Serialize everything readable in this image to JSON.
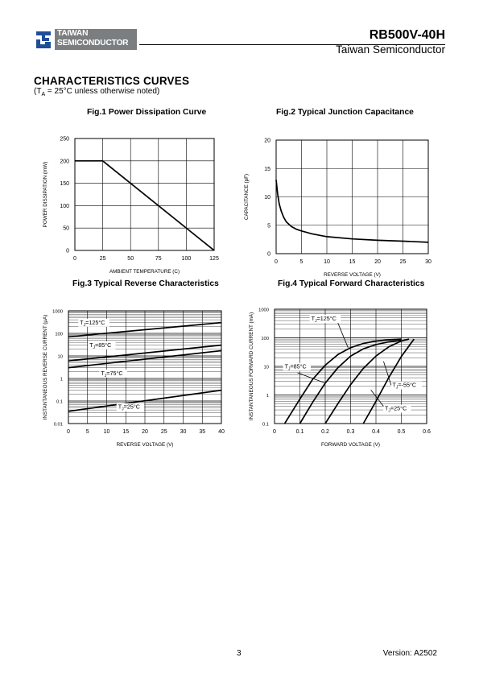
{
  "header": {
    "logo_line1": "TAIWAN",
    "logo_line2": "SEMICONDUCTOR",
    "part_number": "RB500V-40H",
    "company": "Taiwan Semiconductor"
  },
  "section": {
    "title": "CHARACTERISTICS CURVES",
    "note_prefix": "(T",
    "note_sub": "A",
    "note_suffix": " = 25°C unless otherwise noted)"
  },
  "footer": {
    "page": "3",
    "version": "Version: A2502"
  },
  "colors": {
    "logo_gray": "#7b7e80",
    "logo_blue": "#1f4e99",
    "curve": "#000000"
  },
  "chart_data": [
    {
      "type": "line",
      "title": "Fig.1 Power Dissipation Curve",
      "xlabel": "AMBIENT TEMPERATURE (C)",
      "ylabel": "POWER DISSIPATION (mW)",
      "xlim": [
        0,
        125
      ],
      "ylim": [
        0,
        250
      ],
      "xticks": [
        "0",
        "25",
        "50",
        "75",
        "100",
        "125"
      ],
      "yticks": [
        "0",
        "50",
        "100",
        "150",
        "200",
        "250"
      ],
      "grid": true,
      "series": [
        {
          "x": [
            0,
            25,
            125
          ],
          "y": [
            200,
            200,
            0
          ]
        }
      ]
    },
    {
      "type": "line",
      "title": "Fig.2 Typical Junction Capacitance",
      "xlabel": "REVERSE VOLTAGE (V)",
      "ylabel": "CAPACITANCE (pF)",
      "xlim": [
        0,
        30
      ],
      "ylim": [
        0,
        20
      ],
      "xticks": [
        "0",
        "5",
        "10",
        "15",
        "20",
        "25",
        "30"
      ],
      "yticks": [
        "0",
        "5",
        "10",
        "15",
        "20"
      ],
      "grid": true,
      "series": [
        {
          "x": [
            0,
            0.3,
            0.6,
            1,
            1.5,
            2,
            3,
            4,
            5,
            7,
            10,
            15,
            20,
            25,
            30
          ],
          "y": [
            13,
            10.5,
            8.8,
            7.5,
            6.4,
            5.6,
            4.8,
            4.3,
            4.0,
            3.5,
            3.0,
            2.6,
            2.35,
            2.2,
            2.0
          ]
        }
      ]
    },
    {
      "type": "line",
      "title": "Fig.3 Typical Reverse Characteristics",
      "xlabel": "REVERSE VOLTAGE (V)",
      "ylabel": "INSTANTANEOUS REVERSE CURRENT (μA)",
      "xlim": [
        0,
        40
      ],
      "ylim": [
        0.01,
        1000
      ],
      "yscale": "log",
      "xticks": [
        "0",
        "5",
        "10",
        "15",
        "20",
        "25",
        "30",
        "35",
        "40"
      ],
      "yticks": [
        "0.01",
        "0.1",
        "1",
        "10",
        "100",
        "1000"
      ],
      "grid": true,
      "annotations": [
        {
          "main": "T",
          "sub": "J",
          "rest": "=125°C",
          "x": 3,
          "y": 250
        },
        {
          "main": "T",
          "sub": "J",
          "rest": "=85°C",
          "x": 5.5,
          "y": 25
        },
        {
          "main": "T",
          "sub": "J",
          "rest": "=75°C",
          "x": 8.5,
          "y": 1.4
        },
        {
          "main": "T",
          "sub": "J",
          "rest": "=25°C",
          "x": 13,
          "y": 0.045
        }
      ],
      "series": [
        {
          "name": "T J=125°C",
          "x": [
            0,
            40
          ],
          "y": [
            70,
            300
          ]
        },
        {
          "name": "T J=85°C",
          "x": [
            0,
            40
          ],
          "y": [
            6,
            30
          ]
        },
        {
          "name": "T J=75°C",
          "x": [
            0,
            40
          ],
          "y": [
            3,
            17
          ]
        },
        {
          "name": "T J=25°C",
          "x": [
            0,
            40
          ],
          "y": [
            0.035,
            0.3
          ]
        }
      ]
    },
    {
      "type": "line",
      "title": "Fig.4 Typical Forward Characteristics",
      "xlabel": "FORWARD VOLTAGE (V)",
      "ylabel": "INSTANTANEOUS FORWARD CURRENT (mA)",
      "xlim": [
        0,
        0.6
      ],
      "ylim": [
        0.1,
        1000
      ],
      "yscale": "log",
      "xticks": [
        "0",
        "0.1",
        "0.2",
        "0.3",
        "0.4",
        "0.5",
        "0.6"
      ],
      "yticks": [
        "0.1",
        "1",
        "10",
        "100",
        "1000"
      ],
      "grid": true,
      "annotations": [
        {
          "main": "T",
          "sub": "J",
          "rest": "=125°C",
          "x": 0.145,
          "y": 400
        },
        {
          "main": "T",
          "sub": "J",
          "rest": "=85°C",
          "x": 0.04,
          "y": 8.5
        },
        {
          "main": "T",
          "sub": "J",
          "rest": "=-55°C",
          "x": 0.465,
          "y": 1.9
        },
        {
          "main": "T",
          "sub": "J",
          "rest": "=25°C",
          "x": 0.435,
          "y": 0.29
        }
      ],
      "series": [
        {
          "name": "T J=125°C",
          "x": [
            0.04,
            0.1,
            0.15,
            0.2,
            0.25,
            0.3,
            0.35,
            0.4,
            0.45,
            0.5
          ],
          "y": [
            0.1,
            0.72,
            3.5,
            11,
            26,
            45,
            63,
            77,
            85,
            90
          ]
        },
        {
          "name": "T J=85°C",
          "x": [
            0.1,
            0.15,
            0.2,
            0.25,
            0.3,
            0.35,
            0.4,
            0.45,
            0.5
          ],
          "y": [
            0.1,
            0.55,
            2.6,
            9,
            23,
            41,
            58,
            72,
            82
          ]
        },
        {
          "name": "T J=25°C",
          "x": [
            0.2,
            0.25,
            0.3,
            0.35,
            0.4,
            0.45,
            0.5,
            0.53
          ],
          "y": [
            0.1,
            0.5,
            2.3,
            8.5,
            23,
            48,
            77,
            90
          ]
        },
        {
          "name": "T J=-55°C",
          "x": [
            0.35,
            0.4,
            0.45,
            0.5,
            0.55
          ],
          "y": [
            0.1,
            0.6,
            4,
            22,
            90
          ]
        }
      ]
    }
  ]
}
